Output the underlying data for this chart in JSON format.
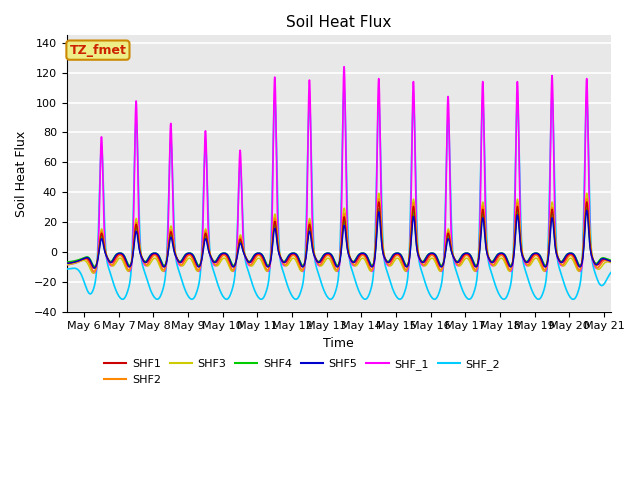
{
  "title": "Soil Heat Flux",
  "xlabel": "Time",
  "ylabel": "Soil Heat Flux",
  "xlim_days": [
    5.5,
    21.2
  ],
  "ylim": [
    -40,
    145
  ],
  "yticks": [
    -40,
    -20,
    0,
    20,
    40,
    60,
    80,
    100,
    120,
    140
  ],
  "xtick_labels": [
    "May 6",
    "May 7",
    "May 8",
    "May 9",
    "May 10",
    "May 11",
    "May 12",
    "May 13",
    "May 14",
    "May 15",
    "May 16",
    "May 17",
    "May 18",
    "May 19",
    "May 20",
    "May 21"
  ],
  "xtick_days": [
    6,
    7,
    8,
    9,
    10,
    11,
    12,
    13,
    14,
    15,
    16,
    17,
    18,
    19,
    20,
    21
  ],
  "series": {
    "SHF1": {
      "color": "#cc0000",
      "lw": 1.0
    },
    "SHF2": {
      "color": "#ff8800",
      "lw": 1.0
    },
    "SHF3": {
      "color": "#cccc00",
      "lw": 1.0
    },
    "SHF4": {
      "color": "#00cc00",
      "lw": 1.0
    },
    "SHF5": {
      "color": "#0000cc",
      "lw": 1.0
    },
    "SHF_1": {
      "color": "#ff00ff",
      "lw": 1.2
    },
    "SHF_2": {
      "color": "#00ccff",
      "lw": 1.2
    }
  },
  "annotation_text": "TZ_fmet",
  "annotation_color": "#cc2200",
  "annotation_bg": "#eeee88",
  "annotation_border": "#cc8800",
  "bg_color": "#e8e8e8",
  "grid_color": "#ffffff",
  "legend_order": [
    "SHF1",
    "SHF2",
    "SHF3",
    "SHF4",
    "SHF5",
    "SHF_1",
    "SHF_2"
  ]
}
